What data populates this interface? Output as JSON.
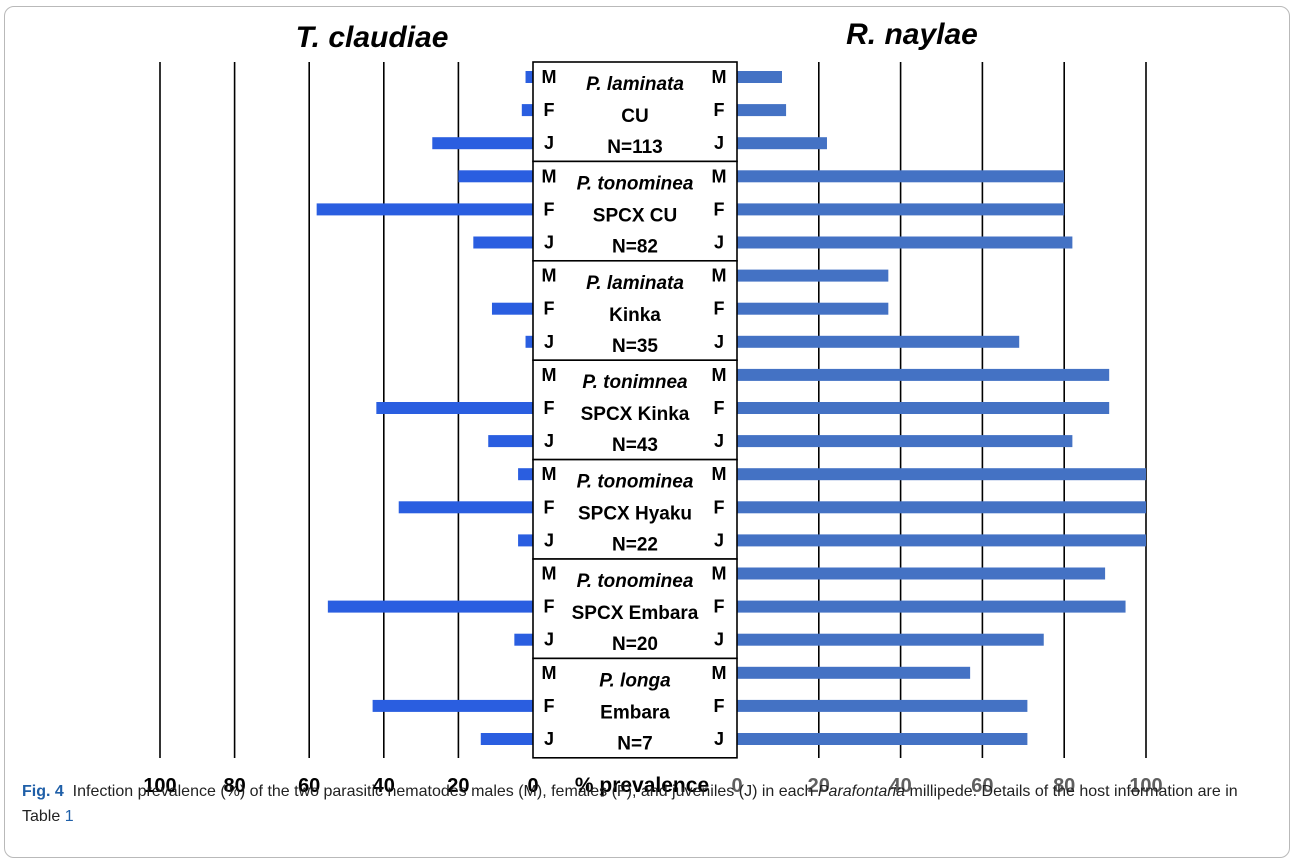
{
  "chart_data": {
    "type": "bar",
    "orientation": "horizontal-diverging",
    "left_title": "T. claudiae",
    "right_title": "R. naylae",
    "center_axis_label": "% prevalence",
    "left_ticks": [
      "100",
      "80",
      "60",
      "40",
      "20",
      "0"
    ],
    "right_ticks": [
      "0",
      "20",
      "40",
      "60",
      "80",
      "100"
    ],
    "xlim": [
      0,
      100
    ],
    "grid": true,
    "colors": {
      "left": "#2a5ee0",
      "right": "#4472c4"
    },
    "stages": [
      "M",
      "F",
      "J"
    ],
    "groups": [
      {
        "host": "P. laminata",
        "site": "CU",
        "n": "N=113",
        "t_claudiae": [
          2,
          3,
          27
        ],
        "r_naylae": [
          11,
          12,
          22
        ]
      },
      {
        "host": "P. tonominea",
        "site": "SPCX CU",
        "n": "N=82",
        "t_claudiae": [
          20,
          58,
          16
        ],
        "r_naylae": [
          80,
          80,
          82
        ]
      },
      {
        "host": "P. laminata",
        "site": "Kinka",
        "n": "N=35",
        "t_claudiae": [
          0,
          11,
          2
        ],
        "r_naylae": [
          37,
          37,
          69
        ]
      },
      {
        "host": "P. tonimnea",
        "site": "SPCX Kinka",
        "n": "N=43",
        "t_claudiae": [
          0,
          42,
          12
        ],
        "r_naylae": [
          91,
          91,
          82
        ]
      },
      {
        "host": "P. tonominea",
        "site": "SPCX Hyaku",
        "n": "N=22",
        "t_claudiae": [
          4,
          36,
          4
        ],
        "r_naylae": [
          100,
          100,
          100
        ]
      },
      {
        "host": "P. tonominea",
        "site": "SPCX Embara",
        "n": "N=20",
        "t_claudiae": [
          0,
          55,
          5
        ],
        "r_naylae": [
          90,
          95,
          75
        ]
      },
      {
        "host": "P. longa",
        "site": "Embara",
        "n": "N=7",
        "t_claudiae": [
          0,
          43,
          14
        ],
        "r_naylae": [
          57,
          71,
          71
        ]
      }
    ]
  },
  "caption": {
    "label": "Fig. 4",
    "text_before": "Infection prevalence (%) of the two parasitic nematodes males (M), females (F), and juveniles (J) in each ",
    "italic": "Parafontaria",
    "text_middle": " millipede. Details of the host information are in Table ",
    "table_ref": "1"
  }
}
